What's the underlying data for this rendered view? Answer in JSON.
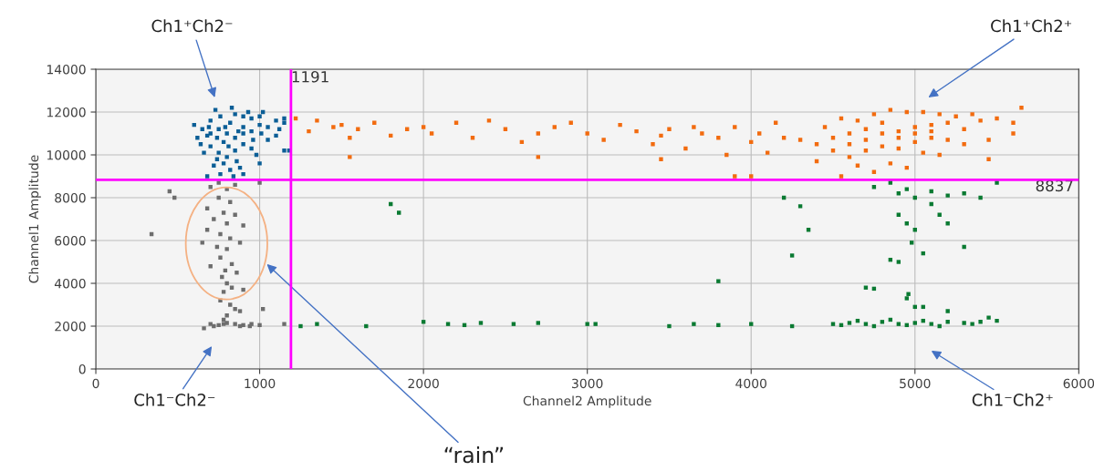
{
  "chart_data": {
    "type": "scatter",
    "xlabel": "Channel2 Amplitude",
    "ylabel": "Channel1 Amplitude",
    "xlim": [
      0,
      6000
    ],
    "xticks": [
      0,
      1000,
      2000,
      3000,
      4000,
      5000,
      6000
    ],
    "ylim": [
      0,
      14000
    ],
    "yticks": [
      0,
      2000,
      4000,
      6000,
      8000,
      10000,
      12000,
      14000
    ],
    "grid": true,
    "marker": "square",
    "ref_lines": [
      {
        "axis": "x",
        "value": 1191,
        "label": "1191",
        "color": "#ff00ff"
      },
      {
        "axis": "y",
        "value": 8837,
        "label": "8837",
        "color": "#ff00ff"
      }
    ],
    "annotations": [
      "Ch1⁺Ch2⁻",
      "Ch1⁺Ch2⁺",
      "Ch1⁻Ch2⁻",
      "Ch1⁻Ch2⁺",
      "“rain”"
    ],
    "series": [
      {
        "color": "#0b5e96",
        "x": [
          800,
          750,
          850,
          700,
          900,
          780,
          820,
          680,
          950,
          1000,
          1050,
          1100,
          1150,
          620,
          650,
          700,
          760,
          850,
          900,
          950,
          1000,
          700,
          750,
          800,
          850,
          900,
          950,
          780,
          820,
          720,
          880,
          760,
          840,
          660,
          980,
          1050,
          1100,
          1120,
          1150,
          1150,
          1180,
          600,
          640,
          730,
          830,
          930,
          1020,
          790,
          870,
          740,
          810,
          900,
          960,
          690,
          1010,
          860,
          740,
          680,
          900,
          1000
        ],
        "values": [
          11000,
          11200,
          10800,
          11000,
          11300,
          10600,
          11500,
          10900,
          11100,
          11400,
          11300,
          11600,
          11500,
          10800,
          11200,
          11600,
          11800,
          11900,
          11800,
          11700,
          11800,
          10400,
          10100,
          9900,
          10200,
          10500,
          10300,
          9600,
          9300,
          9500,
          9400,
          9100,
          9000,
          10100,
          10000,
          10700,
          10900,
          11200,
          11700,
          10200,
          10200,
          11400,
          10500,
          12100,
          12200,
          12000,
          12000,
          11300,
          11100,
          10800,
          10400,
          11000,
          10700,
          11300,
          11000,
          9700,
          9800,
          9000,
          9100,
          9600
        ]
      },
      {
        "color": "#6d6d6d",
        "x": [
          340,
          450,
          480,
          700,
          750,
          800,
          850,
          750,
          820,
          680,
          780,
          850,
          720,
          800,
          900,
          680,
          760,
          820,
          650,
          740,
          800,
          880,
          760,
          830,
          700,
          790,
          860,
          770,
          800,
          830,
          780,
          900,
          760,
          820,
          850,
          800,
          880,
          780,
          700,
          750,
          800,
          850,
          900,
          950,
          1000,
          720,
          780,
          880,
          940,
          660,
          1020,
          1000,
          1150
        ],
        "values": [
          6300,
          8300,
          8000,
          8500,
          8700,
          8400,
          8600,
          8000,
          7800,
          7500,
          7300,
          7200,
          7000,
          6800,
          6700,
          6500,
          6300,
          6100,
          5900,
          5700,
          5600,
          5900,
          5200,
          4900,
          4800,
          4600,
          4500,
          4300,
          4000,
          3800,
          3600,
          3700,
          3200,
          3000,
          2800,
          2500,
          2700,
          2300,
          2100,
          2050,
          2150,
          2100,
          2050,
          2100,
          2050,
          2000,
          2100,
          2000,
          2000,
          1900,
          2800,
          8700,
          2100
        ]
      },
      {
        "color": "#f26b0f",
        "x": [
          1220,
          1300,
          1350,
          1450,
          1500,
          1550,
          1600,
          1700,
          1800,
          1900,
          2000,
          2050,
          2200,
          2300,
          2400,
          2500,
          2600,
          2700,
          2800,
          2900,
          3000,
          3100,
          3200,
          3300,
          3400,
          3450,
          3500,
          3600,
          3650,
          3700,
          3800,
          3850,
          3900,
          4000,
          4050,
          4100,
          4150,
          4200,
          1550,
          3450,
          3900,
          4000,
          4300,
          2700,
          4500,
          4600,
          4700,
          4800,
          4900,
          5000,
          5100,
          5200,
          5300,
          5400,
          5500,
          5600,
          5650,
          4400,
          4450,
          4550,
          4650,
          4750,
          4850,
          4950,
          5050,
          5150,
          5250,
          5350,
          4500,
          4600,
          4700,
          4800,
          4900,
          5000,
          5100,
          5200,
          4650,
          4750,
          4850,
          4950,
          5050,
          5150,
          4550,
          5450,
          5450,
          5600,
          4700,
          4800,
          4900,
          5000,
          5100,
          4600,
          5300,
          4400
        ],
        "values": [
          11700,
          11100,
          11600,
          11300,
          11400,
          10800,
          11200,
          11500,
          10900,
          11200,
          11300,
          11000,
          11500,
          10800,
          11600,
          11200,
          10600,
          11000,
          11300,
          11500,
          11000,
          10700,
          11400,
          11100,
          10500,
          10900,
          11200,
          10300,
          11300,
          11000,
          10800,
          10000,
          11300,
          10600,
          11000,
          10100,
          11500,
          10800,
          9900,
          9800,
          9000,
          9000,
          10700,
          9900,
          10800,
          11000,
          11200,
          11000,
          11100,
          11300,
          11400,
          11500,
          11200,
          11600,
          11700,
          11500,
          12200,
          10500,
          11300,
          11700,
          11600,
          11900,
          12100,
          12000,
          12000,
          11900,
          11800,
          11900,
          10200,
          9900,
          10200,
          10400,
          10300,
          10600,
          10800,
          10700,
          9500,
          9200,
          9600,
          9400,
          10100,
          10000,
          9000,
          10700,
          9800,
          11000,
          10700,
          11500,
          10800,
          11000,
          11100,
          10500,
          10500,
          9700
        ]
      },
      {
        "color": "#0a7a32",
        "x": [
          1250,
          1350,
          1650,
          2000,
          2150,
          2250,
          2350,
          2550,
          2700,
          3000,
          3050,
          3500,
          3650,
          3800,
          4000,
          4250,
          1800,
          1850,
          3800,
          4200,
          4300,
          4250,
          4350,
          4500,
          4600,
          4700,
          4800,
          4900,
          5000,
          5100,
          5200,
          5300,
          5400,
          5500,
          4550,
          4750,
          4950,
          5150,
          5350,
          4650,
          4850,
          5050,
          5450,
          4750,
          4850,
          4900,
          4950,
          5000,
          5100,
          5200,
          5300,
          5400,
          5500,
          4900,
          4950,
          5000,
          4980,
          5050,
          4850,
          4900,
          4700,
          4750,
          4960,
          4950,
          5000,
          5050,
          5200,
          5300,
          5150,
          5200,
          5100
        ],
        "values": [
          2000,
          2100,
          2000,
          2200,
          2100,
          2050,
          2150,
          2100,
          2150,
          2100,
          2100,
          2000,
          2100,
          2050,
          2100,
          2000,
          7700,
          7300,
          4100,
          8000,
          7600,
          5300,
          6500,
          2100,
          2150,
          2100,
          2200,
          2100,
          2150,
          2100,
          2200,
          2150,
          2200,
          2250,
          2050,
          2000,
          2050,
          2000,
          2100,
          2250,
          2300,
          2250,
          2400,
          8500,
          8700,
          8200,
          8400,
          8000,
          8300,
          8100,
          8200,
          8000,
          8700,
          7200,
          6800,
          6500,
          5900,
          5400,
          5100,
          5000,
          3800,
          3750,
          3500,
          3300,
          2900,
          2900,
          2700,
          5700,
          7200,
          6800,
          7700
        ]
      }
    ]
  }
}
